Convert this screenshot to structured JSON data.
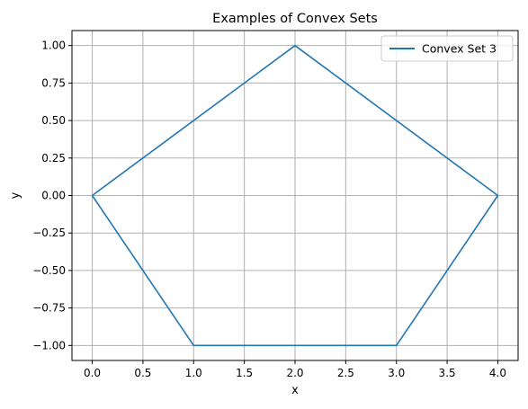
{
  "chart_data": {
    "type": "line",
    "title": "Examples of Convex Sets",
    "xlabel": "x",
    "ylabel": "y",
    "xlim": [
      -0.2,
      4.2
    ],
    "ylim": [
      -1.1,
      1.1
    ],
    "xticks": [
      0.0,
      0.5,
      1.0,
      1.5,
      2.0,
      2.5,
      3.0,
      3.5,
      4.0
    ],
    "xtick_labels": [
      "0.0",
      "0.5",
      "1.0",
      "1.5",
      "2.0",
      "2.5",
      "3.0",
      "3.5",
      "4.0"
    ],
    "yticks": [
      -1.0,
      -0.75,
      -0.5,
      -0.25,
      0.0,
      0.25,
      0.5,
      0.75,
      1.0
    ],
    "ytick_labels": [
      "−1.00",
      "−0.75",
      "−0.50",
      "−0.25",
      "0.00",
      "0.25",
      "0.50",
      "0.75",
      "1.00"
    ],
    "grid": true,
    "legend_position": "top-right",
    "series": [
      {
        "name": "Convex Set 3",
        "color": "#1f77b4",
        "x": [
          0,
          2,
          4,
          3,
          1,
          0
        ],
        "y": [
          0,
          1,
          0,
          -1,
          -1,
          0
        ]
      }
    ]
  }
}
